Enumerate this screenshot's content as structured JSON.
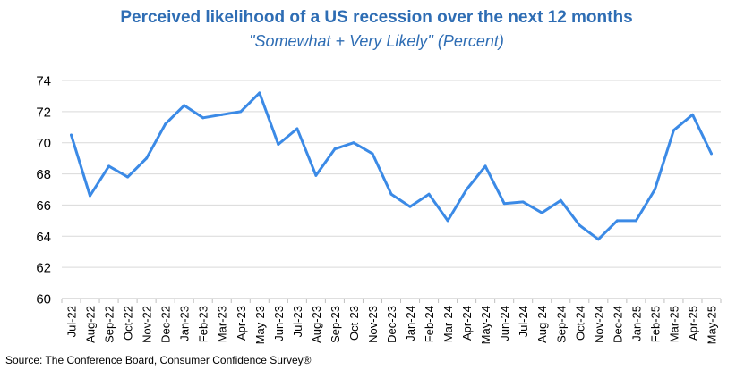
{
  "chart_data": {
    "type": "line",
    "title": "Perceived likelihood of a US recession over the next 12 months",
    "subtitle": "\"Somewhat + Very Likely\" (Percent)",
    "source": "Source: The Conference Board, Consumer Confidence   Survey®",
    "categories": [
      "Jul-22",
      "Aug-22",
      "Sep-22",
      "Oct-22",
      "Nov-22",
      "Dec-22",
      "Jan-23",
      "Feb-23",
      "Mar-23",
      "Apr-23",
      "May-23",
      "Jun-23",
      "Jul-23",
      "Aug-23",
      "Sep-23",
      "Oct-23",
      "Nov-23",
      "Dec-23",
      "Jan-24",
      "Feb-24",
      "Mar-24",
      "Apr-24",
      "May-24",
      "Jun-24",
      "Jul-24",
      "Aug-24",
      "Sep-24",
      "Oct-24",
      "Nov-24",
      "Dec-24",
      "Jan-25",
      "Feb-25",
      "Mar-25",
      "Apr-25",
      "May-25"
    ],
    "series": [
      {
        "values": [
          70.5,
          66.6,
          68.5,
          67.8,
          69.0,
          71.2,
          72.4,
          71.6,
          71.8,
          72.0,
          73.2,
          69.9,
          70.9,
          67.9,
          69.6,
          70.0,
          69.3,
          66.7,
          65.9,
          66.7,
          65.0,
          67.0,
          68.5,
          66.1,
          66.2,
          65.5,
          66.3,
          64.7,
          63.8,
          65.0,
          65.0,
          67.0,
          70.8,
          71.8,
          69.3
        ]
      }
    ],
    "ylim": [
      60,
      74
    ],
    "yticks": [
      60,
      62,
      64,
      66,
      68,
      70,
      72,
      74
    ],
    "grid": "horizontal",
    "colors": {
      "line": "#3b8ae6",
      "grid": "#d9d9d9",
      "title": "#2e6db4"
    }
  }
}
